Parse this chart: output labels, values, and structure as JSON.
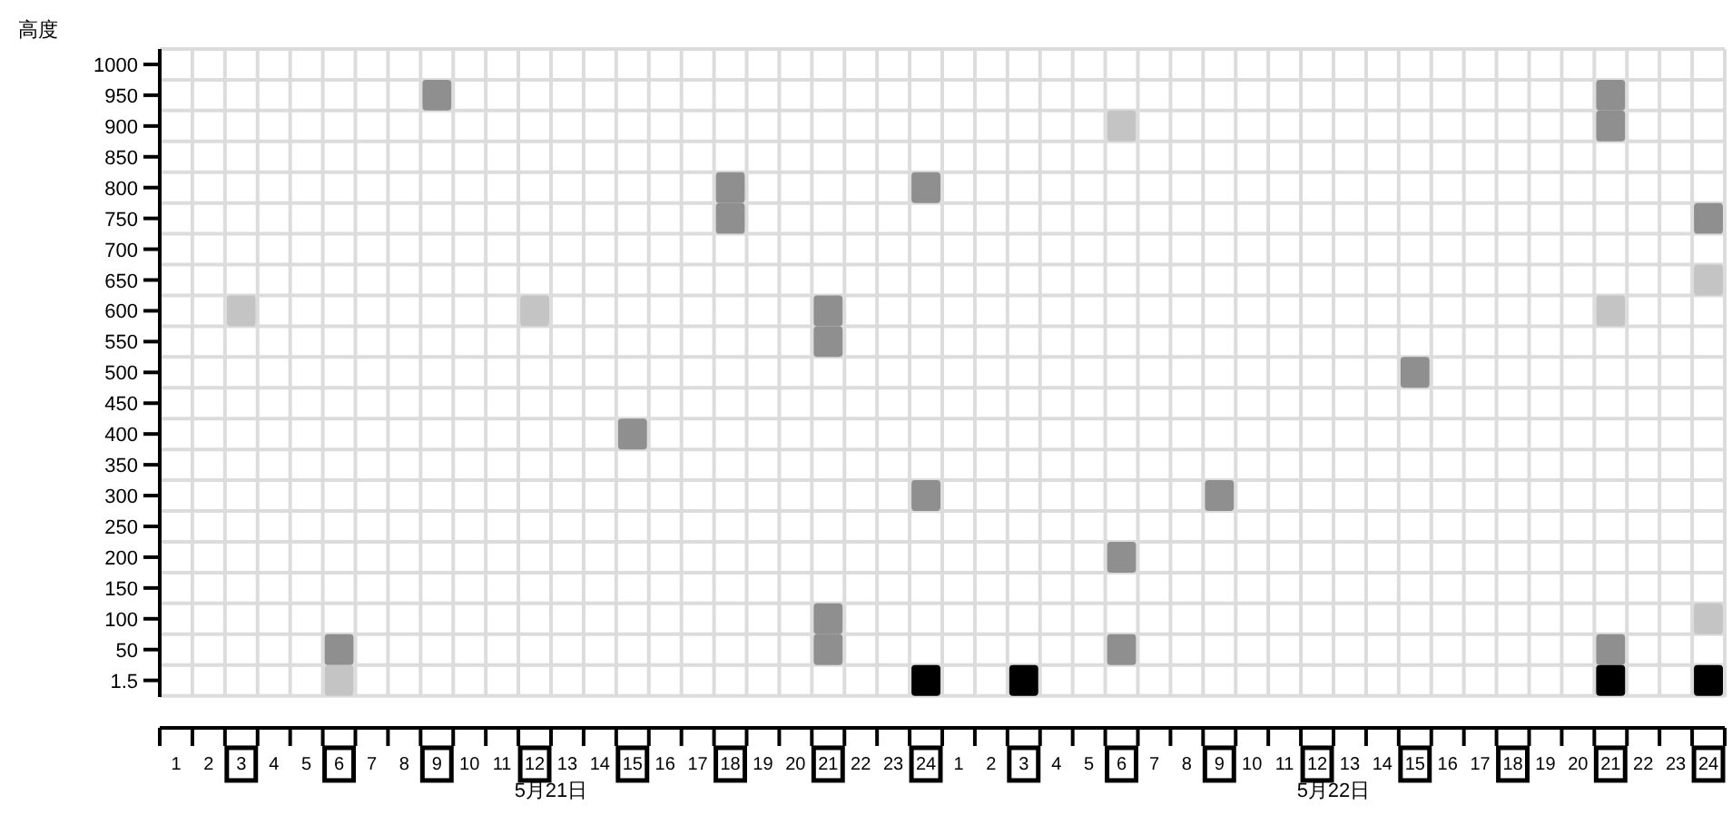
{
  "chart_data": [
    {
      "type": "scatter",
      "ylabel": "高度",
      "xlabel": "5月21日",
      "marker": "square",
      "grid": true,
      "xlim": [
        0.5,
        24.5
      ],
      "xticks": [
        1,
        2,
        3,
        4,
        5,
        6,
        7,
        8,
        9,
        10,
        11,
        12,
        13,
        14,
        15,
        16,
        17,
        18,
        19,
        20,
        21,
        22,
        23,
        24
      ],
      "ylim": [
        -24.7,
        1025
      ],
      "yticks": [
        1.5,
        50,
        100,
        150,
        200,
        250,
        300,
        350,
        400,
        450,
        500,
        550,
        600,
        650,
        700,
        750,
        800,
        850,
        900,
        950,
        1000
      ],
      "series": [
        {
          "color": "#8f8f8f",
          "x": [
            6,
            9,
            15,
            18,
            18,
            21,
            21,
            21,
            21,
            24,
            24
          ],
          "values": [
            50,
            950,
            400,
            800,
            750,
            600,
            550,
            100,
            50,
            800,
            300
          ]
        },
        {
          "color": "#c4c4c4",
          "x": [
            3,
            12,
            6
          ],
          "values": [
            600,
            600,
            1.5
          ]
        },
        {
          "color": "#000000",
          "x": [
            24
          ],
          "values": [
            1.5
          ]
        }
      ]
    },
    {
      "type": "scatter",
      "xlabel": "5月22日",
      "marker": "square",
      "grid": true,
      "tick_labels": "x",
      "xlim": [
        0.5,
        24.5
      ],
      "xticks": [
        1,
        2,
        3,
        4,
        5,
        6,
        7,
        8,
        9,
        10,
        11,
        12,
        13,
        14,
        15,
        16,
        17,
        18,
        19,
        20,
        21,
        22,
        23,
        24
      ],
      "ylim": [
        -24.7,
        1025
      ],
      "yticks": [
        1.5,
        50,
        100,
        150,
        200,
        250,
        300,
        350,
        400,
        450,
        500,
        550,
        600,
        650,
        700,
        750,
        800,
        850,
        900,
        950,
        1000
      ],
      "series": [
        {
          "color": "#8f8f8f",
          "x": [
            6,
            6,
            9,
            15,
            21,
            21,
            21,
            24
          ],
          "values": [
            200,
            50,
            300,
            500,
            950,
            900,
            50,
            750
          ]
        },
        {
          "color": "#c4c4c4",
          "x": [
            6,
            21,
            24,
            24
          ],
          "values": [
            900,
            600,
            650,
            100
          ]
        },
        {
          "color": "#000000",
          "x": [
            3,
            21,
            24
          ],
          "values": [
            1.5,
            1.5,
            1.5
          ]
        }
      ]
    }
  ]
}
